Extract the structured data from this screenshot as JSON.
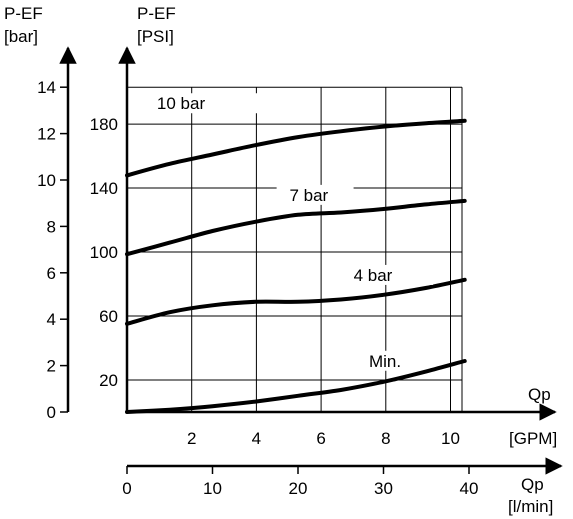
{
  "chart_data": {
    "type": "line",
    "title": "",
    "axes": {
      "y_bar": {
        "title": [
          "P-EF",
          "[bar]"
        ],
        "range": [
          0,
          14
        ],
        "ticks": [
          0,
          2,
          4,
          6,
          8,
          10,
          12,
          14
        ]
      },
      "y_psi": {
        "title": [
          "P-EF",
          "[PSI]"
        ],
        "range": [
          0,
          203
        ],
        "ticks": [
          20,
          60,
          100,
          140,
          180
        ]
      },
      "x_gpm": {
        "title": [
          "Qp",
          "[GPM]"
        ],
        "range": [
          0,
          10.5
        ],
        "ticks": [
          2,
          4,
          6,
          8,
          10
        ]
      },
      "x_lmin": {
        "title": [
          "Qp",
          "[l/min]"
        ],
        "range": [
          0,
          40
        ],
        "ticks": [
          0,
          10,
          20,
          30,
          40
        ]
      }
    },
    "grid": true,
    "series": [
      {
        "name": "10 bar",
        "x_lmin": [
          0,
          5,
          10,
          15,
          20,
          25,
          30,
          35,
          39.5
        ],
        "y_bar": [
          10.2,
          10.7,
          11.1,
          11.5,
          11.85,
          12.1,
          12.3,
          12.45,
          12.55
        ]
      },
      {
        "name": "7 bar",
        "x_lmin": [
          0,
          5,
          10,
          15,
          20,
          25,
          30,
          35,
          39.5
        ],
        "y_bar": [
          6.8,
          7.3,
          7.8,
          8.2,
          8.5,
          8.6,
          8.75,
          8.95,
          9.1
        ]
      },
      {
        "name": "4 bar",
        "x_lmin": [
          0,
          5,
          10,
          15,
          20,
          25,
          30,
          35,
          39.5
        ],
        "y_bar": [
          3.8,
          4.3,
          4.6,
          4.75,
          4.75,
          4.85,
          5.05,
          5.35,
          5.7
        ]
      },
      {
        "name": "Min.",
        "x_lmin": [
          0,
          5,
          10,
          15,
          20,
          25,
          30,
          35,
          39.5
        ],
        "y_bar": [
          0,
          0.1,
          0.25,
          0.45,
          0.7,
          0.95,
          1.3,
          1.75,
          2.2
        ]
      }
    ]
  }
}
